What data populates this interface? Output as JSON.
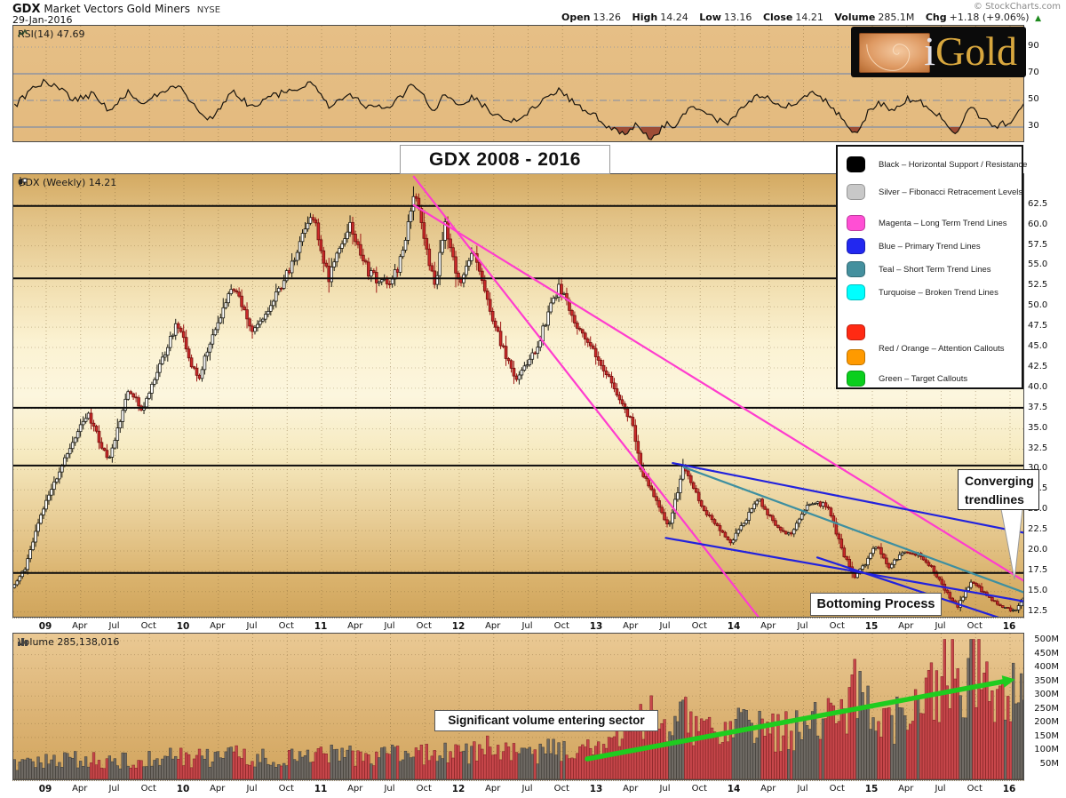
{
  "header": {
    "symbol": "GDX",
    "name": "Market Vectors Gold Miners",
    "exchange": "NYSE",
    "date": "29-Jan-2016",
    "copyright": "© StockCharts.com",
    "ohlc": {
      "open_label": "Open",
      "open": "13.26",
      "high_label": "High",
      "high": "14.24",
      "low_label": "Low",
      "low": "13.16",
      "close_label": "Close",
      "close": "14.21",
      "volume_label": "Volume",
      "volume": "285.1M",
      "chg_label": "Chg",
      "chg": "+1.18 (+9.06%)",
      "arrow": "▲"
    }
  },
  "logo": {
    "i": "i",
    "gold": "Gold"
  },
  "panels": {
    "rsi_label": "RSI(14) 47.69",
    "price_label": "GDX (Weekly) 14.21",
    "volume_label": "Volume 285,138,016"
  },
  "annotations": {
    "title": "GDX 2008 - 2016",
    "converging_line1": "Converging",
    "converging_line2": "trendlines",
    "bottoming": "Bottoming Process",
    "volume_note": "Significant volume entering sector"
  },
  "legend": {
    "items": [
      {
        "colors": [
          "#000000"
        ],
        "label": "Black – Horizontal Support / Resistance"
      },
      {
        "colors": [
          "#C8C8C8"
        ],
        "label": "Silver – Fibonacci Retracement Levels"
      },
      {
        "colors": [
          "#FF4FD4"
        ],
        "label": "Magenta – Long Term Trend Lines"
      },
      {
        "colors": [
          "#2228F0"
        ],
        "label": "Blue – Primary Trend Lines"
      },
      {
        "colors": [
          "#44909E"
        ],
        "label": "Teal – Short Term Trend Lines"
      },
      {
        "colors": [
          "#00FFFF"
        ],
        "label": "Turquoise – Broken Trend Lines"
      },
      {
        "colors": [
          "#FF2A13",
          "#FF9A00"
        ],
        "label": "Red / Orange – Attention Callouts"
      },
      {
        "colors": [
          "#0ACF1D"
        ],
        "label": "Green – Target Callouts"
      }
    ]
  },
  "colors": {
    "candle_up": "#FFFFFF",
    "candle_up_stroke": "#1A1A14",
    "candle_down": "#CC2A2A",
    "candle_down_stroke": "#70100E",
    "wick_up": "#1A1A14",
    "wick_down": "#9E1A17",
    "vol_up": "#6F6A64",
    "vol_up_stroke": "#3C3934",
    "vol_down": "#C8474B",
    "vol_down_stroke": "#7E1F22",
    "rsi_line": "#17130D",
    "rsi_fill": "#9A4733",
    "sr_line": "#0B0B0B",
    "grid": "#7A5F32",
    "rsi_ref": "#7E8DA6",
    "arrow_green": "#1FCC1F"
  },
  "chart_data": {
    "type": "candlestick",
    "symbol": "GDX",
    "timeframe": "Weekly",
    "period": "2008 - 2016",
    "x_axis": {
      "start_year": 2008.76,
      "end_year": 2016.11,
      "labels": [
        "09",
        "Apr",
        "Jul",
        "Oct",
        "10",
        "Apr",
        "Jul",
        "Oct",
        "11",
        "Apr",
        "Jul",
        "Oct",
        "12",
        "Apr",
        "Jul",
        "Oct",
        "13",
        "Apr",
        "Jul",
        "Oct",
        "14",
        "Apr",
        "Jul",
        "Oct",
        "15",
        "Apr",
        "Jul",
        "Oct",
        "16"
      ]
    },
    "price_axis": {
      "min": 11.7,
      "max": 66.3,
      "ticks": [
        "62.5",
        "60.0",
        "57.5",
        "55.0",
        "52.5",
        "50.0",
        "47.5",
        "45.0",
        "42.5",
        "40.0",
        "37.5",
        "35.0",
        "32.5",
        "30.0",
        "27.5",
        "25.0",
        "22.5",
        "20.0",
        "17.5",
        "15.0",
        "12.5"
      ]
    },
    "rsi_axis": {
      "ticks": [
        90,
        70,
        50,
        30
      ],
      "overbought": 70,
      "mid": 50,
      "oversold": 30
    },
    "volume_axis": {
      "ticks": [
        "500M",
        "450M",
        "400M",
        "350M",
        "300M",
        "250M",
        "200M",
        "150M",
        "100M",
        "50M"
      ]
    },
    "support_resistance_levels": [
      62.4,
      53.5,
      37.6,
      30.5,
      17.3
    ],
    "price_anchors": [
      [
        2008.76,
        15.5
      ],
      [
        2008.85,
        18
      ],
      [
        2008.95,
        24
      ],
      [
        2009.05,
        28
      ],
      [
        2009.18,
        33
      ],
      [
        2009.3,
        37
      ],
      [
        2009.45,
        31
      ],
      [
        2009.6,
        40
      ],
      [
        2009.7,
        37
      ],
      [
        2009.85,
        44
      ],
      [
        2009.95,
        48
      ],
      [
        2010.1,
        41
      ],
      [
        2010.35,
        53
      ],
      [
        2010.5,
        46.5
      ],
      [
        2010.62,
        50
      ],
      [
        2010.75,
        54
      ],
      [
        2010.93,
        61.5
      ],
      [
        2011.05,
        53.5
      ],
      [
        2011.2,
        60
      ],
      [
        2011.35,
        54
      ],
      [
        2011.5,
        52.5
      ],
      [
        2011.6,
        57
      ],
      [
        2011.67,
        64.5
      ],
      [
        2011.75,
        58
      ],
      [
        2011.82,
        52.5
      ],
      [
        2011.9,
        60
      ],
      [
        2012.0,
        52.5
      ],
      [
        2012.1,
        57
      ],
      [
        2012.25,
        48
      ],
      [
        2012.4,
        41
      ],
      [
        2012.55,
        44.5
      ],
      [
        2012.72,
        52.5
      ],
      [
        2012.85,
        48
      ],
      [
        2012.95,
        45.5
      ],
      [
        2013.05,
        42.5
      ],
      [
        2013.25,
        36
      ],
      [
        2013.32,
        30
      ],
      [
        2013.42,
        26.5
      ],
      [
        2013.52,
        22.8
      ],
      [
        2013.63,
        30.5
      ],
      [
        2013.72,
        27
      ],
      [
        2013.8,
        24.5
      ],
      [
        2013.97,
        21
      ],
      [
        2014.07,
        23.5
      ],
      [
        2014.17,
        26.5
      ],
      [
        2014.3,
        23
      ],
      [
        2014.4,
        22
      ],
      [
        2014.55,
        26
      ],
      [
        2014.68,
        25.5
      ],
      [
        2014.78,
        20
      ],
      [
        2014.87,
        16.8
      ],
      [
        2014.95,
        18.5
      ],
      [
        2015.03,
        20.8
      ],
      [
        2015.12,
        18
      ],
      [
        2015.22,
        19.8
      ],
      [
        2015.35,
        19.5
      ],
      [
        2015.45,
        17.5
      ],
      [
        2015.57,
        14
      ],
      [
        2015.62,
        13.2
      ],
      [
        2015.72,
        16.3
      ],
      [
        2015.8,
        15
      ],
      [
        2015.88,
        13.8
      ],
      [
        2015.97,
        13
      ],
      [
        2016.03,
        12.6
      ],
      [
        2016.11,
        14.21
      ]
    ],
    "rsi_anchors": [
      [
        2008.76,
        45
      ],
      [
        2008.9,
        58
      ],
      [
        2009.0,
        65
      ],
      [
        2009.1,
        58
      ],
      [
        2009.2,
        50
      ],
      [
        2009.35,
        55
      ],
      [
        2009.45,
        43
      ],
      [
        2009.6,
        57
      ],
      [
        2009.7,
        48
      ],
      [
        2009.85,
        58
      ],
      [
        2009.95,
        62
      ],
      [
        2010.1,
        42
      ],
      [
        2010.2,
        36
      ],
      [
        2010.35,
        58
      ],
      [
        2010.5,
        44
      ],
      [
        2010.62,
        52
      ],
      [
        2010.75,
        57
      ],
      [
        2010.93,
        64
      ],
      [
        2011.05,
        46
      ],
      [
        2011.2,
        56
      ],
      [
        2011.35,
        44
      ],
      [
        2011.5,
        47
      ],
      [
        2011.6,
        55
      ],
      [
        2011.67,
        63
      ],
      [
        2011.82,
        42
      ],
      [
        2011.9,
        55
      ],
      [
        2012.0,
        46
      ],
      [
        2012.1,
        53
      ],
      [
        2012.25,
        40
      ],
      [
        2012.4,
        34
      ],
      [
        2012.55,
        46
      ],
      [
        2012.72,
        58
      ],
      [
        2012.85,
        47
      ],
      [
        2013.0,
        38
      ],
      [
        2013.1,
        28
      ],
      [
        2013.2,
        26
      ],
      [
        2013.28,
        31
      ],
      [
        2013.35,
        24
      ],
      [
        2013.42,
        22
      ],
      [
        2013.5,
        33
      ],
      [
        2013.56,
        27
      ],
      [
        2013.62,
        41
      ],
      [
        2013.75,
        46
      ],
      [
        2013.85,
        36
      ],
      [
        2013.95,
        32
      ],
      [
        2014.1,
        49
      ],
      [
        2014.2,
        54
      ],
      [
        2014.35,
        43
      ],
      [
        2014.5,
        53
      ],
      [
        2014.6,
        56
      ],
      [
        2014.75,
        40
      ],
      [
        2014.83,
        27
      ],
      [
        2014.9,
        26
      ],
      [
        2014.97,
        42
      ],
      [
        2015.05,
        49
      ],
      [
        2015.15,
        42
      ],
      [
        2015.25,
        51
      ],
      [
        2015.35,
        49
      ],
      [
        2015.5,
        38
      ],
      [
        2015.56,
        29
      ],
      [
        2015.62,
        26
      ],
      [
        2015.7,
        45
      ],
      [
        2015.8,
        37
      ],
      [
        2015.9,
        31
      ],
      [
        2016.0,
        34
      ],
      [
        2016.05,
        41
      ],
      [
        2016.11,
        47.69
      ]
    ],
    "volume_anchors_millions": [
      [
        2008.76,
        48
      ],
      [
        2009.0,
        60
      ],
      [
        2009.3,
        72
      ],
      [
        2009.6,
        62
      ],
      [
        2009.9,
        78
      ],
      [
        2010.1,
        72
      ],
      [
        2010.4,
        82
      ],
      [
        2010.7,
        70
      ],
      [
        2011.0,
        85
      ],
      [
        2011.3,
        78
      ],
      [
        2011.7,
        88
      ],
      [
        2012.0,
        92
      ],
      [
        2012.2,
        108
      ],
      [
        2012.45,
        88
      ],
      [
        2012.7,
        100
      ],
      [
        2012.95,
        108
      ],
      [
        2013.1,
        130
      ],
      [
        2013.3,
        210
      ],
      [
        2013.5,
        235
      ],
      [
        2013.7,
        185
      ],
      [
        2013.9,
        170
      ],
      [
        2014.1,
        185
      ],
      [
        2014.3,
        160
      ],
      [
        2014.5,
        175
      ],
      [
        2014.7,
        210
      ],
      [
        2014.87,
        310
      ],
      [
        2015.0,
        255
      ],
      [
        2015.15,
        220
      ],
      [
        2015.3,
        250
      ],
      [
        2015.45,
        310
      ],
      [
        2015.55,
        470
      ],
      [
        2015.65,
        350
      ],
      [
        2015.75,
        430
      ],
      [
        2015.85,
        330
      ],
      [
        2015.95,
        285
      ],
      [
        2016.05,
        330
      ],
      [
        2016.11,
        290
      ]
    ],
    "trendlines": [
      {
        "name": "long-term-trendline-1",
        "color": "#FF3DCE",
        "width": 2.2,
        "from": [
          2011.67,
          66.0
        ],
        "to": [
          2014.2,
          11.3
        ]
      },
      {
        "name": "long-term-trendline-2",
        "color": "#FF3DCE",
        "width": 2.2,
        "from": [
          2011.67,
          62.5
        ],
        "to": [
          2016.17,
          15.6
        ]
      },
      {
        "name": "primary-trendline-upper",
        "color": "#2222DD",
        "width": 2.2,
        "from": [
          2013.55,
          30.8
        ],
        "to": [
          2016.17,
          22.0
        ]
      },
      {
        "name": "primary-trendline-lower",
        "color": "#2222DD",
        "width": 2.2,
        "from": [
          2013.5,
          21.6
        ],
        "to": [
          2016.17,
          13.6
        ]
      },
      {
        "name": "primary-trendline-lower-2",
        "color": "#2222DD",
        "width": 2.2,
        "from": [
          2014.6,
          19.2
        ],
        "to": [
          2016.17,
          10.4
        ]
      },
      {
        "name": "short-term-trendline",
        "color": "#3E8FA0",
        "width": 2.2,
        "from": [
          2013.63,
          30.3
        ],
        "to": [
          2016.15,
          14.6
        ]
      }
    ],
    "volume_arrow": {
      "color": "#1FCC1F",
      "from_page": [
        660,
        853
      ],
      "to_page": [
        1128,
        766
      ]
    },
    "last": {
      "open": 13.26,
      "high": 14.24,
      "low": 13.16,
      "close": 14.21,
      "volume_millions": 285.1,
      "rsi": 47.69
    }
  }
}
